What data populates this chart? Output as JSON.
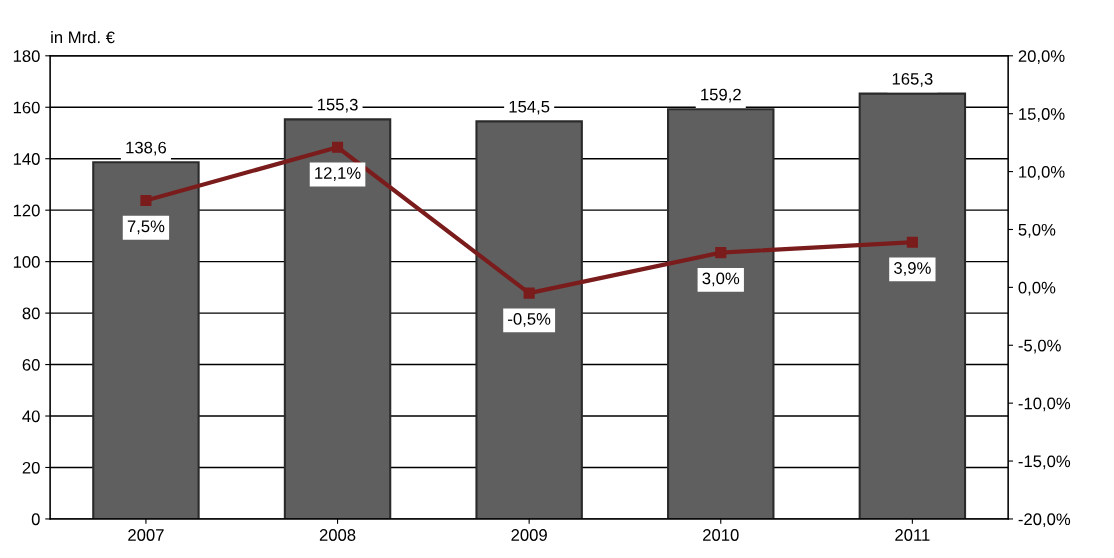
{
  "chart_data": {
    "type": "bar",
    "ylabel": "in Mrd. €",
    "categories": [
      "2007",
      "2008",
      "2009",
      "2010",
      "2011"
    ],
    "series": [
      {
        "color": "#5f5f5f",
        "values": [
          138.6,
          155.3,
          154.5,
          159.2,
          165.3
        ],
        "value_labels": [
          "138,6",
          "155,3",
          "154,5",
          "159,2",
          "165,3"
        ]
      },
      {
        "type": "line",
        "axis": "y2",
        "color": "#7b1c1c",
        "marker": "square",
        "values": [
          7.5,
          12.1,
          -0.5,
          3.0,
          3.9
        ],
        "value_labels": [
          "7,5%",
          "12,1%",
          "-0,5%",
          "3,0%",
          "3,9%"
        ]
      }
    ],
    "ylim": [
      0,
      180
    ],
    "yticks": [
      0,
      20,
      40,
      60,
      80,
      100,
      120,
      140,
      160,
      180
    ],
    "y2lim": [
      -20,
      20
    ],
    "y2ticks": [
      {
        "value": -20,
        "label": "-20,0%"
      },
      {
        "value": -15,
        "label": "-15,0%"
      },
      {
        "value": -10,
        "label": "-10,0%"
      },
      {
        "value": -5,
        "label": "-5,0%"
      },
      {
        "value": 0,
        "label": "0,0%"
      },
      {
        "value": 5,
        "label": "5,0%"
      },
      {
        "value": 10,
        "label": "10,0%"
      },
      {
        "value": 15,
        "label": "15,0%"
      },
      {
        "value": 20,
        "label": "20,0%"
      }
    ],
    "grid": "y",
    "legend": false
  }
}
